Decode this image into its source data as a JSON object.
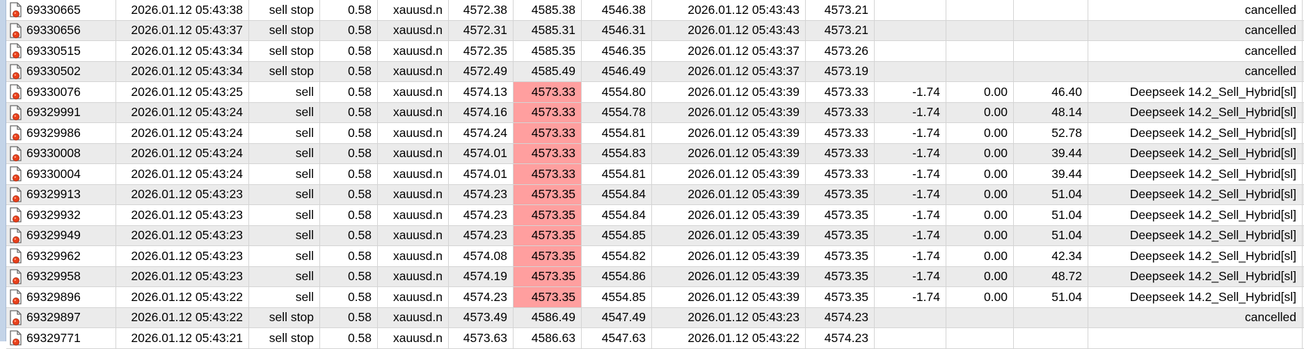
{
  "colors": {
    "sl_highlight": "#ff9f9f",
    "row_alt": "#ebebeb",
    "order_icon_dot": "#e8401c"
  },
  "row_icon": "order-document-icon",
  "rows": [
    {
      "ticket": "69330665",
      "time": "2026.01.12 05:43:38",
      "type": "sell stop",
      "volume": "0.58",
      "symbol": "xauusd.n",
      "price": "4572.38",
      "sl": "4585.38",
      "tp": "4546.38",
      "close_time": "2026.01.12 05:43:43",
      "close_price": "4573.21",
      "commission": "",
      "swap": "",
      "profit": "",
      "comment": "cancelled",
      "sl_hit": false
    },
    {
      "ticket": "69330656",
      "time": "2026.01.12 05:43:37",
      "type": "sell stop",
      "volume": "0.58",
      "symbol": "xauusd.n",
      "price": "4572.31",
      "sl": "4585.31",
      "tp": "4546.31",
      "close_time": "2026.01.12 05:43:43",
      "close_price": "4573.21",
      "commission": "",
      "swap": "",
      "profit": "",
      "comment": "cancelled",
      "sl_hit": false
    },
    {
      "ticket": "69330515",
      "time": "2026.01.12 05:43:34",
      "type": "sell stop",
      "volume": "0.58",
      "symbol": "xauusd.n",
      "price": "4572.35",
      "sl": "4585.35",
      "tp": "4546.35",
      "close_time": "2026.01.12 05:43:37",
      "close_price": "4573.26",
      "commission": "",
      "swap": "",
      "profit": "",
      "comment": "cancelled",
      "sl_hit": false
    },
    {
      "ticket": "69330502",
      "time": "2026.01.12 05:43:34",
      "type": "sell stop",
      "volume": "0.58",
      "symbol": "xauusd.n",
      "price": "4572.49",
      "sl": "4585.49",
      "tp": "4546.49",
      "close_time": "2026.01.12 05:43:37",
      "close_price": "4573.19",
      "commission": "",
      "swap": "",
      "profit": "",
      "comment": "cancelled",
      "sl_hit": false
    },
    {
      "ticket": "69330076",
      "time": "2026.01.12 05:43:25",
      "type": "sell",
      "volume": "0.58",
      "symbol": "xauusd.n",
      "price": "4574.13",
      "sl": "4573.33",
      "tp": "4554.80",
      "close_time": "2026.01.12 05:43:39",
      "close_price": "4573.33",
      "commission": "-1.74",
      "swap": "0.00",
      "profit": "46.40",
      "comment": "Deepseek 14.2_Sell_Hybrid[sl]",
      "sl_hit": true
    },
    {
      "ticket": "69329991",
      "time": "2026.01.12 05:43:24",
      "type": "sell",
      "volume": "0.58",
      "symbol": "xauusd.n",
      "price": "4574.16",
      "sl": "4573.33",
      "tp": "4554.78",
      "close_time": "2026.01.12 05:43:39",
      "close_price": "4573.33",
      "commission": "-1.74",
      "swap": "0.00",
      "profit": "48.14",
      "comment": "Deepseek 14.2_Sell_Hybrid[sl]",
      "sl_hit": true
    },
    {
      "ticket": "69329986",
      "time": "2026.01.12 05:43:24",
      "type": "sell",
      "volume": "0.58",
      "symbol": "xauusd.n",
      "price": "4574.24",
      "sl": "4573.33",
      "tp": "4554.81",
      "close_time": "2026.01.12 05:43:39",
      "close_price": "4573.33",
      "commission": "-1.74",
      "swap": "0.00",
      "profit": "52.78",
      "comment": "Deepseek 14.2_Sell_Hybrid[sl]",
      "sl_hit": true
    },
    {
      "ticket": "69330008",
      "time": "2026.01.12 05:43:24",
      "type": "sell",
      "volume": "0.58",
      "symbol": "xauusd.n",
      "price": "4574.01",
      "sl": "4573.33",
      "tp": "4554.83",
      "close_time": "2026.01.12 05:43:39",
      "close_price": "4573.33",
      "commission": "-1.74",
      "swap": "0.00",
      "profit": "39.44",
      "comment": "Deepseek 14.2_Sell_Hybrid[sl]",
      "sl_hit": true
    },
    {
      "ticket": "69330004",
      "time": "2026.01.12 05:43:24",
      "type": "sell",
      "volume": "0.58",
      "symbol": "xauusd.n",
      "price": "4574.01",
      "sl": "4573.33",
      "tp": "4554.81",
      "close_time": "2026.01.12 05:43:39",
      "close_price": "4573.33",
      "commission": "-1.74",
      "swap": "0.00",
      "profit": "39.44",
      "comment": "Deepseek 14.2_Sell_Hybrid[sl]",
      "sl_hit": true
    },
    {
      "ticket": "69329913",
      "time": "2026.01.12 05:43:23",
      "type": "sell",
      "volume": "0.58",
      "symbol": "xauusd.n",
      "price": "4574.23",
      "sl": "4573.35",
      "tp": "4554.84",
      "close_time": "2026.01.12 05:43:39",
      "close_price": "4573.35",
      "commission": "-1.74",
      "swap": "0.00",
      "profit": "51.04",
      "comment": "Deepseek 14.2_Sell_Hybrid[sl]",
      "sl_hit": true
    },
    {
      "ticket": "69329932",
      "time": "2026.01.12 05:43:23",
      "type": "sell",
      "volume": "0.58",
      "symbol": "xauusd.n",
      "price": "4574.23",
      "sl": "4573.35",
      "tp": "4554.84",
      "close_time": "2026.01.12 05:43:39",
      "close_price": "4573.35",
      "commission": "-1.74",
      "swap": "0.00",
      "profit": "51.04",
      "comment": "Deepseek 14.2_Sell_Hybrid[sl]",
      "sl_hit": true
    },
    {
      "ticket": "69329949",
      "time": "2026.01.12 05:43:23",
      "type": "sell",
      "volume": "0.58",
      "symbol": "xauusd.n",
      "price": "4574.23",
      "sl": "4573.35",
      "tp": "4554.85",
      "close_time": "2026.01.12 05:43:39",
      "close_price": "4573.35",
      "commission": "-1.74",
      "swap": "0.00",
      "profit": "51.04",
      "comment": "Deepseek 14.2_Sell_Hybrid[sl]",
      "sl_hit": true
    },
    {
      "ticket": "69329962",
      "time": "2026.01.12 05:43:23",
      "type": "sell",
      "volume": "0.58",
      "symbol": "xauusd.n",
      "price": "4574.08",
      "sl": "4573.35",
      "tp": "4554.82",
      "close_time": "2026.01.12 05:43:39",
      "close_price": "4573.35",
      "commission": "-1.74",
      "swap": "0.00",
      "profit": "42.34",
      "comment": "Deepseek 14.2_Sell_Hybrid[sl]",
      "sl_hit": true
    },
    {
      "ticket": "69329958",
      "time": "2026.01.12 05:43:23",
      "type": "sell",
      "volume": "0.58",
      "symbol": "xauusd.n",
      "price": "4574.19",
      "sl": "4573.35",
      "tp": "4554.86",
      "close_time": "2026.01.12 05:43:39",
      "close_price": "4573.35",
      "commission": "-1.74",
      "swap": "0.00",
      "profit": "48.72",
      "comment": "Deepseek 14.2_Sell_Hybrid[sl]",
      "sl_hit": true
    },
    {
      "ticket": "69329896",
      "time": "2026.01.12 05:43:22",
      "type": "sell",
      "volume": "0.58",
      "symbol": "xauusd.n",
      "price": "4574.23",
      "sl": "4573.35",
      "tp": "4554.85",
      "close_time": "2026.01.12 05:43:39",
      "close_price": "4573.35",
      "commission": "-1.74",
      "swap": "0.00",
      "profit": "51.04",
      "comment": "Deepseek 14.2_Sell_Hybrid[sl]",
      "sl_hit": true
    },
    {
      "ticket": "69329897",
      "time": "2026.01.12 05:43:22",
      "type": "sell stop",
      "volume": "0.58",
      "symbol": "xauusd.n",
      "price": "4573.49",
      "sl": "4586.49",
      "tp": "4547.49",
      "close_time": "2026.01.12 05:43:23",
      "close_price": "4574.23",
      "commission": "",
      "swap": "",
      "profit": "",
      "comment": "cancelled",
      "sl_hit": false
    },
    {
      "ticket": "69329771",
      "time": "2026.01.12 05:43:21",
      "type": "sell stop",
      "volume": "0.58",
      "symbol": "xauusd.n",
      "price": "4573.63",
      "sl": "4586.63",
      "tp": "4547.63",
      "close_time": "2026.01.12 05:43:22",
      "close_price": "4574.23",
      "commission": "",
      "swap": "",
      "profit": "",
      "comment": "",
      "sl_hit": false
    }
  ]
}
